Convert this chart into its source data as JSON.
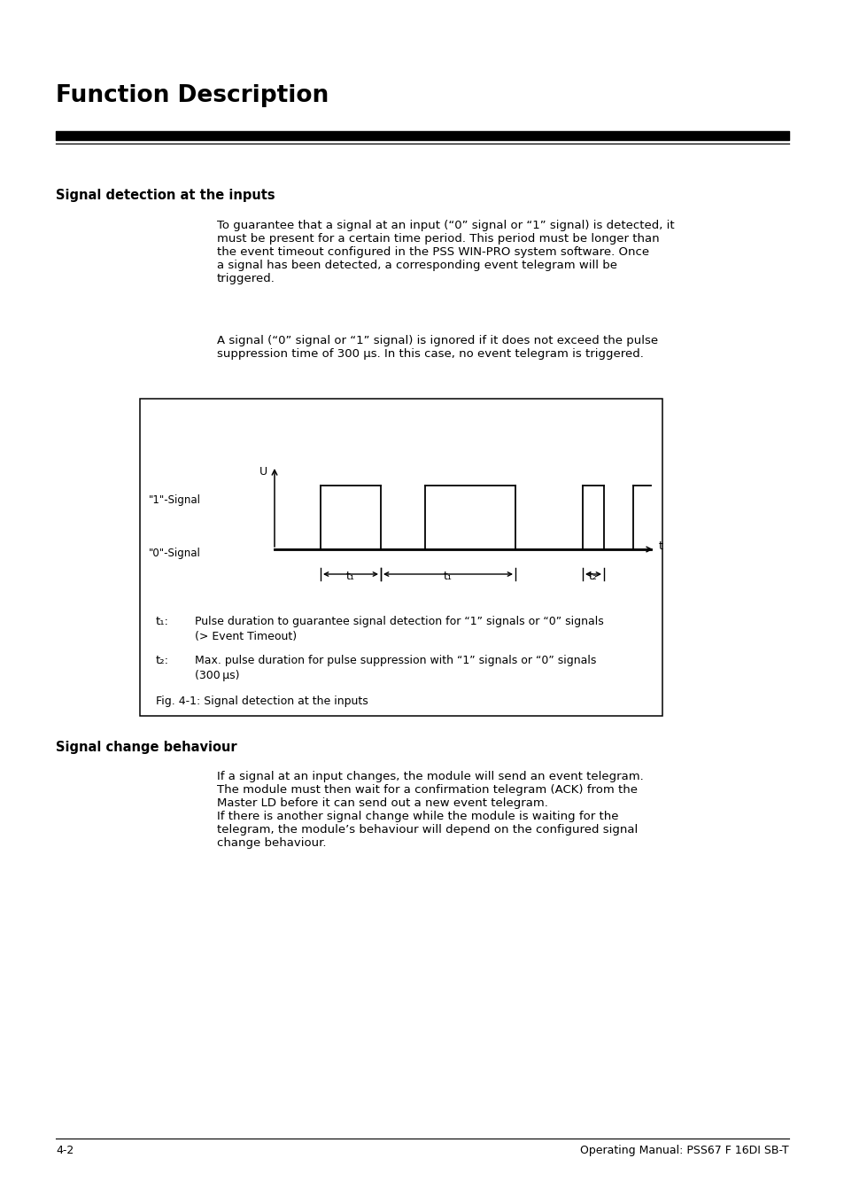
{
  "title": "Function Description",
  "section1_heading": "Signal detection at the inputs",
  "section1_para1": "To guarantee that a signal at an input (“0” signal or “1” signal) is detected, it\nmust be present for a certain time period. This period must be longer than\nthe event timeout configured in the PSS WIN-PRO system software. Once\na signal has been detected, a corresponding event telegram will be\ntriggered.",
  "section1_para2": "A signal (“0” signal or “1” signal) is ignored if it does not exceed the pulse\nsuppression time of 300 μs. In this case, no event telegram is triggered.",
  "fig_caption": "Fig. 4-1: Signal detection at the inputs",
  "t1_label": "t₁",
  "t2_label": "t₂",
  "t1_desc_line1": "Pulse duration to guarantee signal detection for “1” signals or “0” signals",
  "t1_desc_line2": "(> Event Timeout)",
  "t2_desc_line1": "Max. pulse duration for pulse suppression with “1” signals or “0” signals",
  "t2_desc_line2": "(300 μs)",
  "section2_heading": "Signal change behaviour",
  "section2_para": "If a signal at an input changes, the module will send an event telegram.\nThe module must then wait for a confirmation telegram (ACK) from the\nMaster LD before it can send out a new event telegram.\nIf there is another signal change while the module is waiting for the\ntelegram, the module’s behaviour will depend on the configured signal\nchange behaviour.",
  "footer_left": "4-2",
  "footer_right": "Operating Manual: PSS67 F 16DI SB-T",
  "bg_color": "#ffffff",
  "text_color": "#000000"
}
